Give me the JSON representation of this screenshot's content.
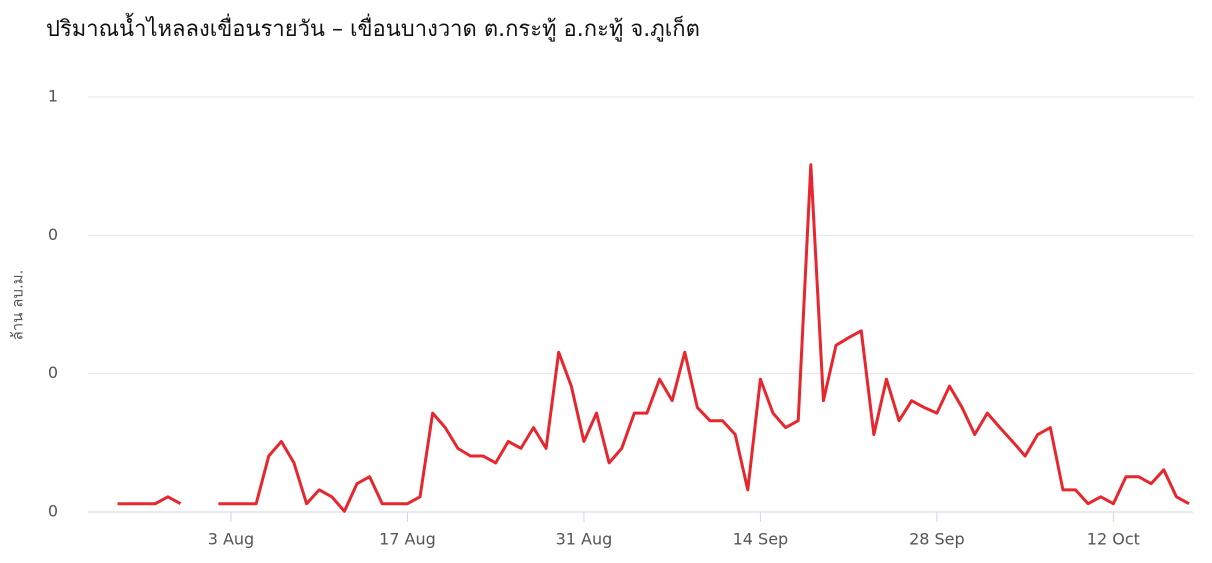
{
  "chart_data": {
    "type": "line",
    "title": "ปริมาณน้ำไหลลงเขื่อนรายวัน – เขื่อนบางวาด ต.กระทู้ อ.กะทู้ จ.ภูเก็ต",
    "y_label": "ล้าน ลบ.ม.",
    "x": [
      "25 Jul",
      "26 Jul",
      "27 Jul",
      "28 Jul",
      "29 Jul",
      "30 Jul",
      "31 Jul",
      "1 Aug",
      "2 Aug",
      "3 Aug",
      "4 Aug",
      "5 Aug",
      "6 Aug",
      "7 Aug",
      "8 Aug",
      "9 Aug",
      "10 Aug",
      "11 Aug",
      "12 Aug",
      "13 Aug",
      "14 Aug",
      "15 Aug",
      "16 Aug",
      "17 Aug",
      "18 Aug",
      "19 Aug",
      "20 Aug",
      "21 Aug",
      "22 Aug",
      "23 Aug",
      "24 Aug",
      "25 Aug",
      "26 Aug",
      "27 Aug",
      "28 Aug",
      "29 Aug",
      "30 Aug",
      "31 Aug",
      "1 Sep",
      "2 Sep",
      "3 Sep",
      "4 Sep",
      "5 Sep",
      "6 Sep",
      "7 Sep",
      "8 Sep",
      "9 Sep",
      "10 Sep",
      "11 Sep",
      "12 Sep",
      "13 Sep",
      "14 Sep",
      "15 Sep",
      "16 Sep",
      "17 Sep",
      "18 Sep",
      "19 Sep",
      "20 Sep",
      "21 Sep",
      "22 Sep",
      "23 Sep",
      "24 Sep",
      "25 Sep",
      "26 Sep",
      "27 Sep",
      "28 Sep",
      "29 Sep",
      "30 Sep",
      "1 Oct",
      "2 Oct",
      "3 Oct",
      "4 Oct",
      "5 Oct",
      "6 Oct",
      "7 Oct",
      "8 Oct",
      "9 Oct",
      "10 Oct",
      "11 Oct",
      "12 Oct",
      "13 Oct",
      "14 Oct",
      "15 Oct",
      "16 Oct",
      "17 Oct",
      "18 Oct"
    ],
    "series": [
      {
        "color": "#e8262d",
        "values": [
          0.012,
          0.012,
          0.012,
          0.012,
          0.022,
          0.012,
          null,
          null,
          0.012,
          0.012,
          0.012,
          0.012,
          0.081,
          0.102,
          0.071,
          0.012,
          0.032,
          0.022,
          0.001,
          0.041,
          0.051,
          0.012,
          0.012,
          0.012,
          0.022,
          0.143,
          0.122,
          0.092,
          0.081,
          0.081,
          0.071,
          0.102,
          0.092,
          0.122,
          0.092,
          0.231,
          0.182,
          0.102,
          0.143,
          0.071,
          0.092,
          0.143,
          0.143,
          0.192,
          0.161,
          0.231,
          0.151,
          0.132,
          0.132,
          0.112,
          0.032,
          0.192,
          0.143,
          0.122,
          0.132,
          0.502,
          0.161,
          0.241,
          0.252,
          0.262,
          0.112,
          0.192,
          0.132,
          0.161,
          0.151,
          0.143,
          0.182,
          0.151,
          0.112,
          0.143,
          0.122,
          0.102,
          0.081,
          0.112,
          0.122,
          0.032,
          0.032,
          0.012,
          0.022,
          0.012,
          0.051,
          0.051,
          0.041,
          0.061,
          0.022,
          0.012
        ]
      }
    ],
    "xticks": [
      "3 Aug",
      "17 Aug",
      "31 Aug",
      "14 Sep",
      "28 Sep",
      "12 Oct"
    ],
    "ylim": [
      0,
      0.6
    ],
    "yticks": [
      {
        "value": 0,
        "label": "0"
      },
      {
        "value": 0.2,
        "label": "0"
      },
      {
        "value": 0.4,
        "label": "0"
      },
      {
        "value": 0.6,
        "label": "1"
      }
    ],
    "grid": true
  }
}
